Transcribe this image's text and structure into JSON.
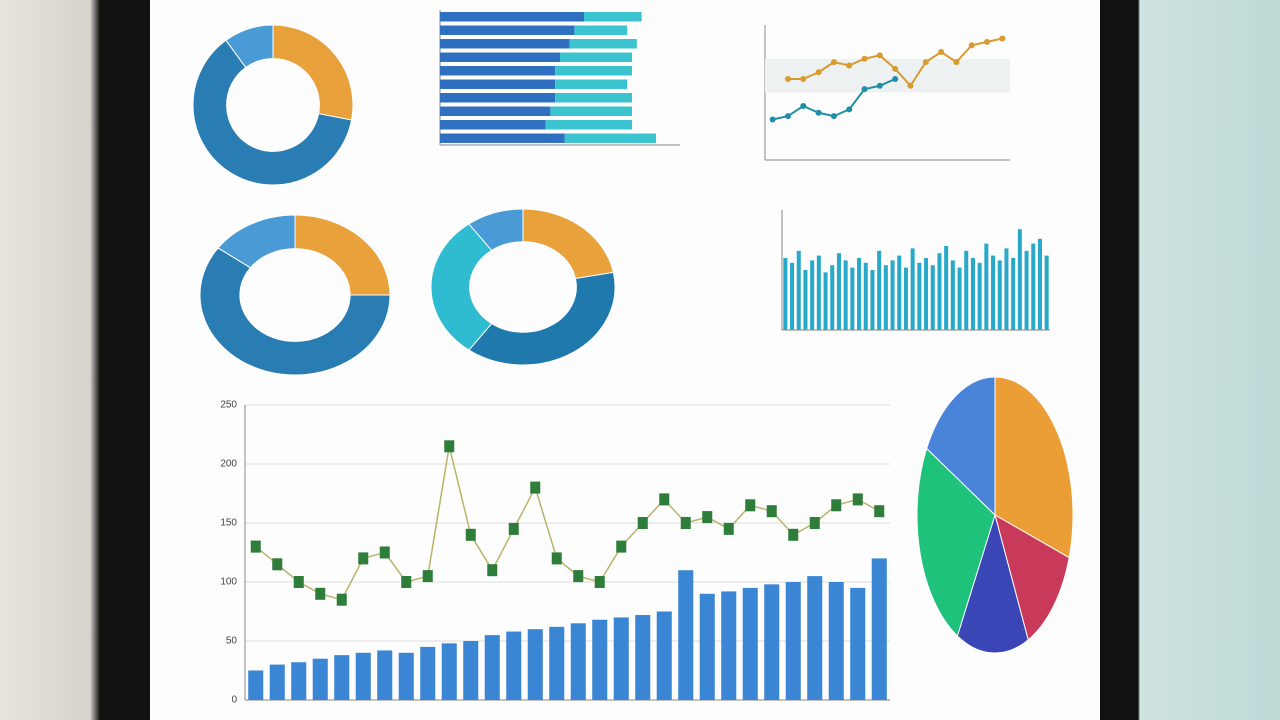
{
  "chart_data": [
    {
      "type": "donut",
      "values": [
        28,
        62,
        10
      ],
      "colors": [
        "#e9a23b",
        "#2a7db3",
        "#4a9ad6"
      ]
    },
    {
      "type": "hbar",
      "categories": [
        null,
        null,
        null,
        null,
        null,
        null,
        null,
        null,
        null,
        null
      ],
      "series": [
        {
          "color": "#2f6fc0",
          "values": [
            150,
            140,
            135,
            125,
            120,
            120,
            120,
            115,
            110,
            130
          ]
        },
        {
          "color": "#3cc3d0",
          "values": [
            60,
            55,
            70,
            75,
            80,
            75,
            80,
            85,
            90,
            95
          ]
        }
      ],
      "xlim": [
        0,
        250
      ]
    },
    {
      "type": "line",
      "categories": [
        null,
        null,
        null,
        null,
        null,
        null,
        null,
        null,
        null,
        null,
        null,
        null,
        null,
        null,
        null,
        null
      ],
      "series": [
        {
          "color": "#d99a2e",
          "values": [
            null,
            24,
            24,
            26,
            29,
            28,
            30,
            31,
            27,
            22,
            29,
            32,
            29,
            34,
            35,
            36
          ]
        },
        {
          "color": "#1f8fa8",
          "values": [
            12,
            13,
            16,
            14,
            13,
            15,
            21,
            22,
            24,
            null,
            null,
            null,
            null,
            null,
            null,
            null
          ]
        }
      ],
      "ylim": [
        0,
        40
      ]
    },
    {
      "type": "donut",
      "values": [
        25,
        60,
        15
      ],
      "colors": [
        "#e9a23b",
        "#2a7db3",
        "#4a9ad6"
      ]
    },
    {
      "type": "donut",
      "values": [
        22,
        38,
        30,
        10
      ],
      "colors": [
        "#e9a23b",
        "#1f79ad",
        "#2fbcd0",
        "#4a9ad6"
      ]
    },
    {
      "type": "bar",
      "color": "#28a9c9",
      "values": [
        30,
        28,
        33,
        25,
        29,
        31,
        24,
        27,
        32,
        29,
        26,
        30,
        28,
        25,
        33,
        27,
        29,
        31,
        26,
        34,
        28,
        30,
        27,
        32,
        35,
        29,
        26,
        33,
        30,
        28,
        36,
        31,
        29,
        34,
        30,
        42,
        33,
        36,
        38,
        31
      ],
      "ylim": [
        0,
        50
      ]
    },
    {
      "type": "combo",
      "categories": [
        null,
        null,
        null,
        null,
        null,
        null,
        null,
        null,
        null,
        null,
        null,
        null,
        null,
        null,
        null,
        null,
        null,
        null,
        null,
        null,
        null,
        null,
        null,
        null,
        null,
        null,
        null,
        null,
        null,
        null
      ],
      "series": [
        {
          "kind": "bar",
          "color": "#3a86d4",
          "values": [
            25,
            30,
            32,
            35,
            38,
            40,
            42,
            40,
            45,
            48,
            50,
            55,
            58,
            60,
            62,
            65,
            68,
            70,
            72,
            75,
            110,
            90,
            92,
            95,
            98,
            100,
            105,
            100,
            95,
            120
          ]
        },
        {
          "kind": "line",
          "color": "#2f7d3a",
          "values": [
            130,
            115,
            100,
            90,
            85,
            120,
            125,
            100,
            105,
            215,
            140,
            110,
            145,
            180,
            120,
            105,
            100,
            130,
            150,
            170,
            150,
            155,
            145,
            165,
            160,
            140,
            150,
            165,
            170,
            160
          ]
        }
      ],
      "ylim": [
        0,
        250
      ],
      "yticks": [
        0,
        50,
        100,
        150,
        200,
        250
      ],
      "grid": true
    },
    {
      "type": "pie",
      "values": [
        30,
        13,
        15,
        25,
        17
      ],
      "colors": [
        "#eb9e35",
        "#c93a5a",
        "#3a46b5",
        "#1fc27a",
        "#4a84d8"
      ]
    }
  ]
}
